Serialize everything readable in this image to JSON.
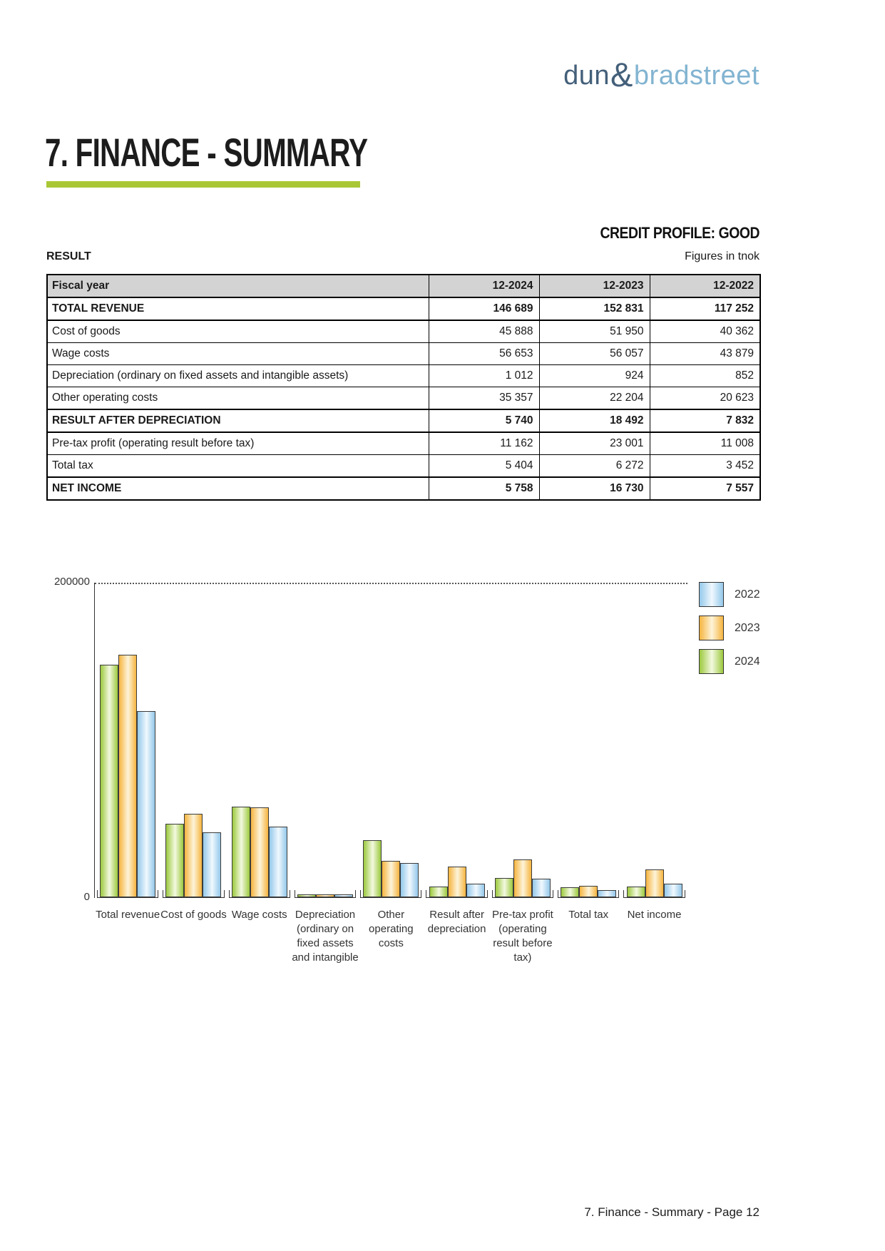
{
  "brand": {
    "dun": "dun",
    "ampersand": "&",
    "bradstreet": "bradstreet"
  },
  "header": {
    "title": "7. FINANCE - SUMMARY",
    "credit_profile": "CREDIT PROFILE: GOOD",
    "section_label": "RESULT",
    "figures_note": "Figures in tnok"
  },
  "table": {
    "header": [
      "Fiscal year",
      "12-2024",
      "12-2023",
      "12-2022"
    ],
    "rows": [
      {
        "label": "TOTAL REVENUE",
        "values": [
          "146 689",
          "152 831",
          "117 252"
        ],
        "bold": true
      },
      {
        "label": "Cost of goods",
        "values": [
          "45 888",
          "51 950",
          "40 362"
        ],
        "bold": false
      },
      {
        "label": "Wage costs",
        "values": [
          "56 653",
          "56 057",
          "43 879"
        ],
        "bold": false
      },
      {
        "label": "Depreciation (ordinary on fixed assets and intangible assets)",
        "values": [
          "1 012",
          "924",
          "852"
        ],
        "bold": false
      },
      {
        "label": "Other operating costs",
        "values": [
          "35 357",
          "22 204",
          "20 623"
        ],
        "bold": false
      },
      {
        "label": "RESULT AFTER DEPRECIATION",
        "values": [
          "5 740",
          "18 492",
          "7 832"
        ],
        "bold": true
      },
      {
        "label": "Pre-tax profit (operating result before tax)",
        "values": [
          "11 162",
          "23 001",
          "11 008"
        ],
        "bold": false
      },
      {
        "label": "Total tax",
        "values": [
          "5 404",
          "6 272",
          "3 452"
        ],
        "bold": false
      },
      {
        "label": "NET INCOME",
        "values": [
          "5 758",
          "16 730",
          "7 557"
        ],
        "bold": true
      }
    ]
  },
  "chart_data": {
    "type": "bar",
    "title": "",
    "categories": [
      "Total revenue",
      "Cost of goods",
      "Wage costs",
      "Depreciation (ordinary on fixed assets and intangible",
      "Other operating costs",
      "Result after depreciation",
      "Pre-tax profit (operating result before tax)",
      "Total tax",
      "Net income"
    ],
    "category_label_lines": [
      [
        "Total revenue"
      ],
      [
        "Cost of goods"
      ],
      [
        "Wage costs"
      ],
      [
        "Depreciation",
        "(ordinary on",
        "fixed assets",
        "and intangible"
      ],
      [
        "Other",
        "operating",
        "costs"
      ],
      [
        "Result after",
        "depreciation"
      ],
      [
        "Pre-tax profit",
        "(operating",
        "result before",
        "tax)"
      ],
      [
        "Total tax"
      ],
      [
        "Net income"
      ]
    ],
    "series": [
      {
        "name": "2024",
        "values": [
          146689,
          45888,
          56653,
          1012,
          35357,
          5740,
          11162,
          5404,
          5758
        ],
        "edge_color": "#9cc93e",
        "mid_color": "#f3f9e0"
      },
      {
        "name": "2023",
        "values": [
          152831,
          51950,
          56057,
          924,
          22204,
          18492,
          23001,
          6272,
          16730
        ],
        "edge_color": "#f6b43f",
        "mid_color": "#fdf4d9"
      },
      {
        "name": "2022",
        "values": [
          117252,
          40362,
          43879,
          852,
          20623,
          7832,
          11008,
          3452,
          7557
        ],
        "edge_color": "#94c8ea",
        "mid_color": "#f0f8fe"
      }
    ],
    "bar_order_in_group": [
      "2024",
      "2023",
      "2022"
    ],
    "legend_order": [
      "2022",
      "2023",
      "2024"
    ],
    "legend_position": "top-right",
    "ylim": [
      0,
      200000
    ],
    "ytick_labels": {
      "top": "200000",
      "bottom": "0"
    },
    "grid": "single dotted gridline at y = 200000"
  },
  "footer": {
    "text": "7. Finance - Summary - Page 12"
  },
  "colors": {
    "accent_rule": "#a9c735",
    "table_header_bg": "#d3d3d3",
    "logo_dun": "#44607a",
    "logo_bradstreet": "#82b4d1",
    "bar_2024": "#9cc93e",
    "bar_2023": "#f6b43f",
    "bar_2022": "#94c8ea"
  }
}
